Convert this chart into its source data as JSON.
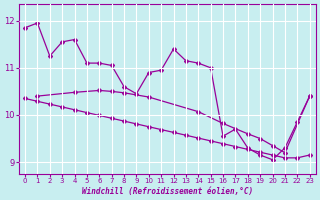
{
  "xlabel": "Windchill (Refroidissement éolien,°C)",
  "background_color": "#c8eef0",
  "line_color": "#990099",
  "grid_color": "#ffffff",
  "xlim": [
    -0.5,
    23.5
  ],
  "ylim": [
    8.75,
    12.35
  ],
  "yticks": [
    9,
    10,
    11,
    12
  ],
  "xticks": [
    0,
    1,
    2,
    3,
    4,
    5,
    6,
    7,
    8,
    9,
    10,
    11,
    12,
    13,
    14,
    15,
    16,
    17,
    18,
    19,
    20,
    21,
    22,
    23
  ],
  "line1_x": [
    0,
    1,
    2,
    3,
    4,
    5,
    6,
    7,
    8,
    9,
    10,
    11,
    12,
    13,
    14,
    15,
    16,
    17,
    18,
    19,
    20,
    21,
    22,
    23
  ],
  "line1_y": [
    11.85,
    11.95,
    11.25,
    11.55,
    11.6,
    11.1,
    11.1,
    11.05,
    10.6,
    10.45,
    10.9,
    10.95,
    11.4,
    11.15,
    11.1,
    11.0,
    9.55,
    9.7,
    9.3,
    9.15,
    9.05,
    9.3,
    9.85,
    10.4
  ],
  "line2_x": [
    1,
    4,
    6,
    7,
    8,
    10,
    14,
    16,
    18,
    19,
    20,
    21,
    23
  ],
  "line2_y": [
    10.4,
    10.48,
    10.52,
    10.5,
    10.47,
    10.38,
    10.07,
    9.82,
    9.6,
    9.5,
    9.35,
    9.2,
    10.4
  ],
  "line3_x": [
    0,
    1,
    2,
    3,
    4,
    5,
    6,
    7,
    8,
    9,
    10,
    11,
    12,
    13,
    14,
    15,
    16,
    17,
    18,
    19,
    20,
    21,
    22,
    23
  ],
  "line3_y": [
    10.35,
    10.29,
    10.23,
    10.17,
    10.11,
    10.05,
    9.99,
    9.93,
    9.87,
    9.81,
    9.75,
    9.69,
    9.63,
    9.57,
    9.51,
    9.45,
    9.39,
    9.33,
    9.27,
    9.21,
    9.15,
    9.09,
    9.09,
    9.15
  ]
}
